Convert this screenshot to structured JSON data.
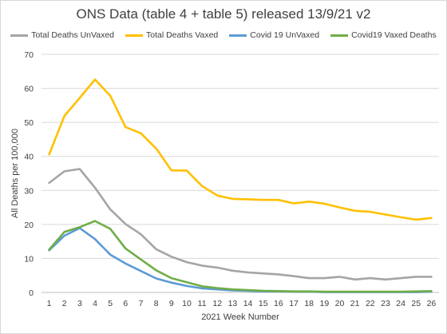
{
  "chart_data": {
    "type": "line",
    "title": "ONS Data (table 4 + table 5) released 13/9/21 v2",
    "xlabel": "2021 Week Number",
    "ylabel": "All Deaths per 100,000",
    "ylim": [
      0,
      70
    ],
    "yticks": [
      0,
      10,
      20,
      30,
      40,
      50,
      60,
      70
    ],
    "grid": true,
    "legend_position": "top",
    "x": [
      1,
      2,
      3,
      4,
      5,
      6,
      7,
      8,
      9,
      10,
      11,
      12,
      13,
      14,
      15,
      16,
      17,
      18,
      19,
      20,
      21,
      22,
      23,
      24,
      25,
      26
    ],
    "series": [
      {
        "name": "Total Deaths UnVaxed",
        "color": "#a5a5a5",
        "values": [
          32.2,
          35.6,
          36.3,
          30.8,
          24.4,
          20.1,
          17.1,
          12.7,
          10.5,
          8.9,
          7.9,
          7.3,
          6.4,
          5.9,
          5.6,
          5.3,
          4.8,
          4.2,
          4.2,
          4.6,
          3.8,
          4.2,
          3.8,
          4.2,
          4.6,
          4.6
        ]
      },
      {
        "name": "Total Deaths Vaxed",
        "color": "#ffc000",
        "values": [
          40.6,
          51.9,
          57.2,
          62.6,
          57.8,
          48.6,
          46.8,
          42.3,
          35.9,
          35.8,
          31.3,
          28.5,
          27.5,
          27.4,
          27.2,
          27.2,
          26.2,
          26.7,
          26.1,
          25.0,
          24.0,
          23.7,
          22.9,
          22.1,
          21.4,
          21.9
        ]
      },
      {
        "name": "Covid 19 UnVaxed",
        "color": "#5b9bd5",
        "values": [
          12.4,
          16.7,
          18.9,
          15.7,
          11.1,
          8.5,
          6.3,
          4.1,
          2.9,
          1.9,
          1.2,
          0.9,
          0.6,
          0.5,
          0.3,
          0.3,
          0.2,
          0.2,
          0.1,
          0.1,
          0.1,
          0.1,
          0.1,
          0.1,
          0.1,
          0.2
        ]
      },
      {
        "name": "Covid19 Vaxed Deaths",
        "color": "#70ad47",
        "values": [
          12.6,
          17.8,
          19.2,
          21.0,
          18.7,
          12.9,
          9.7,
          6.5,
          4.2,
          3.0,
          1.8,
          1.3,
          0.9,
          0.7,
          0.5,
          0.4,
          0.3,
          0.3,
          0.2,
          0.2,
          0.2,
          0.2,
          0.2,
          0.2,
          0.3,
          0.4
        ]
      }
    ]
  }
}
